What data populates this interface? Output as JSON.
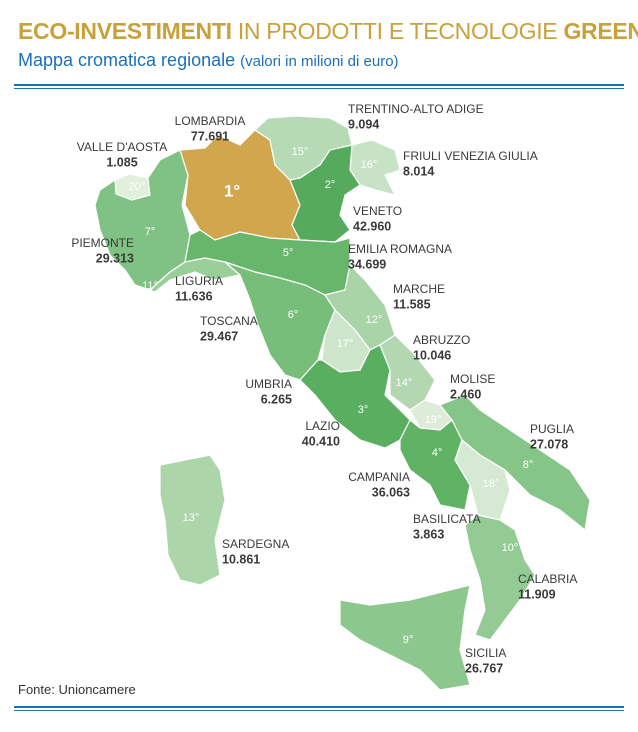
{
  "header": {
    "title_bold_1": "ECO-INVESTIMENTI",
    "title_light": "IN PRODOTTI E TECNOLOGIE",
    "title_bold_2": "GREEN",
    "subtitle": "Mappa cromatica regionale",
    "subtitle_note": "(valori in milioni di euro)"
  },
  "regions": [
    {
      "name": "VALLE D'AOSTA",
      "value": "1.085",
      "rank": "20°",
      "color": "#e1efdd"
    },
    {
      "name": "PIEMONTE",
      "value": "29.313",
      "rank": "7°",
      "color": "#80c283"
    },
    {
      "name": "LOMBARDIA",
      "value": "77.691",
      "rank": "1°",
      "color": "#d2a64c"
    },
    {
      "name": "TRENTINO-ALTO ADIGE",
      "value": "9.094",
      "rank": "15°",
      "color": "#b6dab4"
    },
    {
      "name": "FRIULI VENEZIA GIULIA",
      "value": "8.014",
      "rank": "16°",
      "color": "#c7e2c4"
    },
    {
      "name": "VENETO",
      "value": "42.960",
      "rank": "2°",
      "color": "#55ab5b"
    },
    {
      "name": "EMILIA ROMAGNA",
      "value": "34.699",
      "rank": "5°",
      "color": "#68b66c"
    },
    {
      "name": "LIGURIA",
      "value": "11.636",
      "rank": "11°",
      "color": "#9acf9a"
    },
    {
      "name": "TOSCANA",
      "value": "29.467",
      "rank": "6°",
      "color": "#78be7b"
    },
    {
      "name": "MARCHE",
      "value": "11.585",
      "rank": "12°",
      "color": "#a8d4a7"
    },
    {
      "name": "UMBRIA",
      "value": "6.265",
      "rank": "17°",
      "color": "#cde5ca"
    },
    {
      "name": "LAZIO",
      "value": "40.410",
      "rank": "3°",
      "color": "#5aae5f"
    },
    {
      "name": "ABRUZZO",
      "value": "10.046",
      "rank": "14°",
      "color": "#b3d8b1"
    },
    {
      "name": "MOLISE",
      "value": "2.460",
      "rank": "19°",
      "color": "#dcecd9"
    },
    {
      "name": "CAMPANIA",
      "value": "36.063",
      "rank": "4°",
      "color": "#60b264"
    },
    {
      "name": "PUGLIA",
      "value": "27.078",
      "rank": "8°",
      "color": "#86c588"
    },
    {
      "name": "BASILICATA",
      "value": "3.863",
      "rank": "18°",
      "color": "#d6e9d3"
    },
    {
      "name": "CALABRIA",
      "value": "11.909",
      "rank": "10°",
      "color": "#94cb94"
    },
    {
      "name": "SICILIA",
      "value": "26.767",
      "rank": "9°",
      "color": "#8cc78d"
    },
    {
      "name": "SARDEGNA",
      "value": "10.861",
      "rank": "13°",
      "color": "#acd6aa"
    }
  ],
  "source": "Fonte: Unioncamere"
}
